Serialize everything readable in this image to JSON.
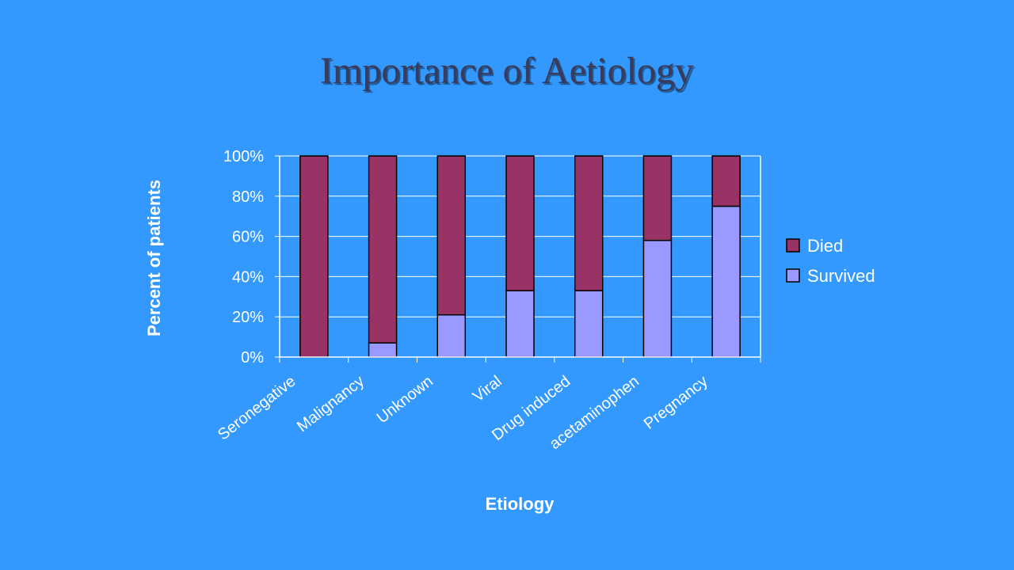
{
  "slide": {
    "title": "Importance of Aetiology"
  },
  "colors": {
    "background": "#3399ff",
    "died": "#993366",
    "survived": "#9999ff",
    "axis": "#ffffff",
    "bar_outline": "#000000"
  },
  "chart_data": {
    "type": "bar",
    "stacked": true,
    "percent": true,
    "categories": [
      "Seronegative",
      "Malignancy",
      "Unknown",
      "Viral",
      "Drug induced",
      "acetaminophen",
      "Pregnancy"
    ],
    "series": [
      {
        "name": "Survived",
        "values": [
          0,
          7,
          21,
          33,
          33,
          58,
          75
        ]
      },
      {
        "name": "Died",
        "values": [
          100,
          93,
          79,
          67,
          67,
          42,
          25
        ]
      }
    ],
    "xlabel": "Etiology",
    "ylabel": "Percent of patients",
    "ylim": [
      0,
      100
    ],
    "yticks": [
      "0%",
      "20%",
      "40%",
      "60%",
      "80%",
      "100%"
    ],
    "legend": {
      "position": "right",
      "entries": [
        "Died",
        "Survived"
      ]
    },
    "grid": true
  }
}
